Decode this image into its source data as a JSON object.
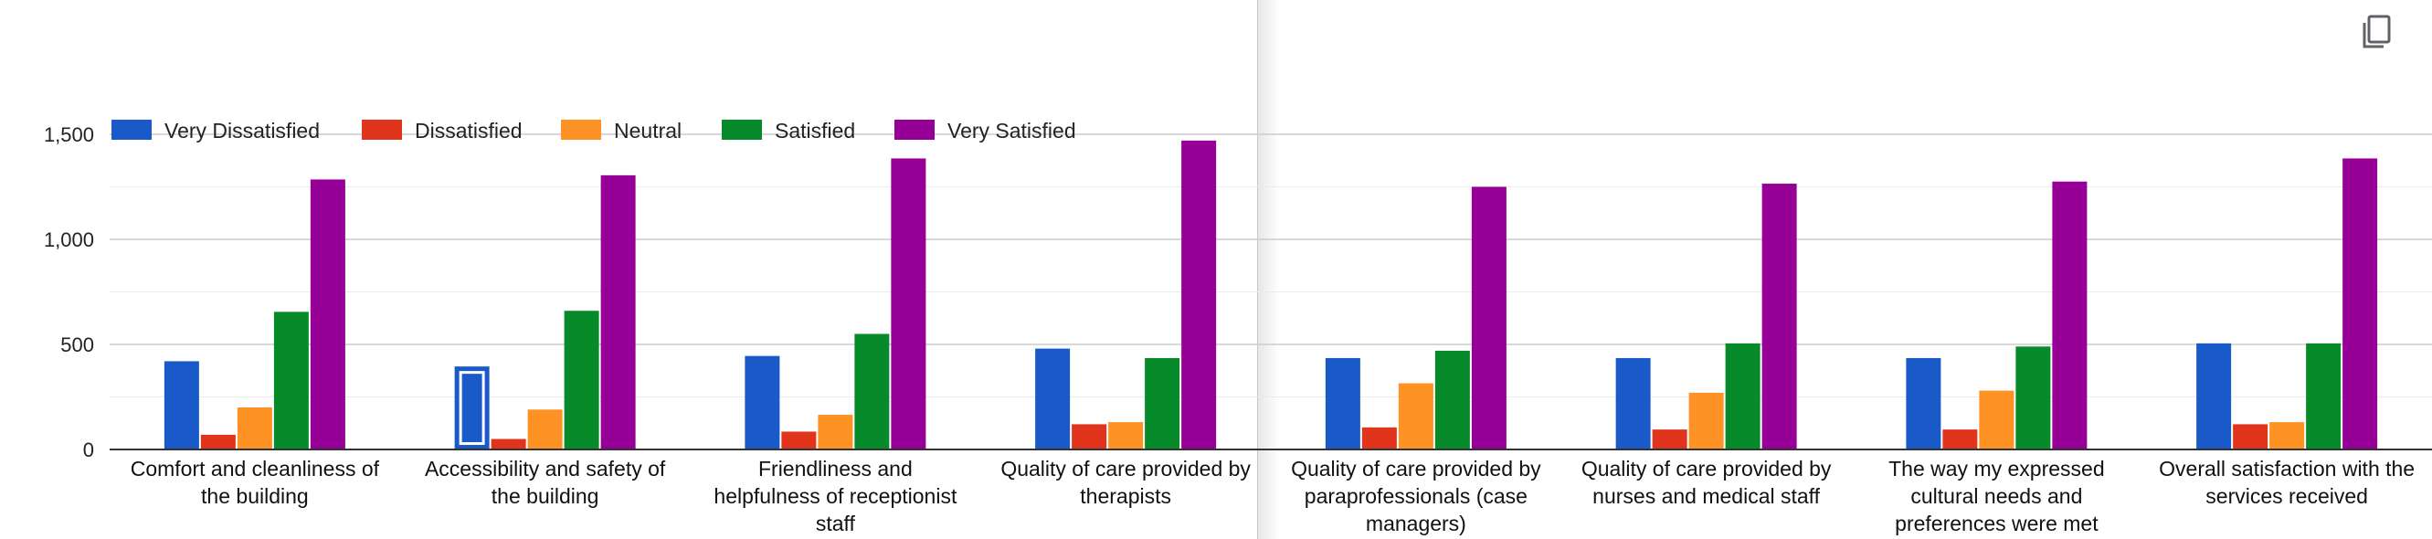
{
  "toolbar": {
    "copy_icon": "copy-icon"
  },
  "chart_data": {
    "type": "bar",
    "title": "",
    "xlabel": "",
    "ylabel": "",
    "ylim": [
      0,
      1500
    ],
    "yticks": [
      0,
      500,
      1000,
      1500
    ],
    "ytick_labels": [
      "0",
      "500",
      "1,000",
      "1,500"
    ],
    "grid": true,
    "legend_position": "top-left",
    "categories": [
      [
        "Comfort and cleanliness of",
        "the building"
      ],
      [
        "Accessibility and safety of",
        "the building"
      ],
      [
        "Friendliness and",
        "helpfulness of receptionist",
        "staff"
      ],
      [
        "Quality of care provided by",
        "therapists"
      ],
      [
        "Quality of care provided by",
        "paraprofessionals (case",
        "managers)"
      ],
      [
        "Quality of care provided by",
        "nurses and medical staff"
      ],
      [
        "The way my expressed",
        "cultural needs and",
        "preferences were met"
      ],
      [
        "Overall satisfaction with the",
        "services received"
      ]
    ],
    "series": [
      {
        "name": "Very Dissatisfied",
        "color": "#1a5ac8",
        "values": [
          420,
          395,
          445,
          480,
          435,
          435,
          435,
          505
        ]
      },
      {
        "name": "Dissatisfied",
        "color": "#e0341c",
        "values": [
          70,
          50,
          85,
          120,
          105,
          95,
          95,
          120
        ]
      },
      {
        "name": "Neutral",
        "color": "#ff9224",
        "values": [
          200,
          190,
          165,
          130,
          315,
          270,
          280,
          130
        ]
      },
      {
        "name": "Satisfied",
        "color": "#078a29",
        "values": [
          655,
          660,
          550,
          435,
          470,
          505,
          490,
          505
        ]
      },
      {
        "name": "Very Satisfied",
        "color": "#960096",
        "values": [
          1285,
          1305,
          1385,
          1470,
          1250,
          1265,
          1275,
          1385
        ]
      }
    ],
    "highlighted_bar": {
      "series": "Very Dissatisfied",
      "category_index": 1
    }
  }
}
